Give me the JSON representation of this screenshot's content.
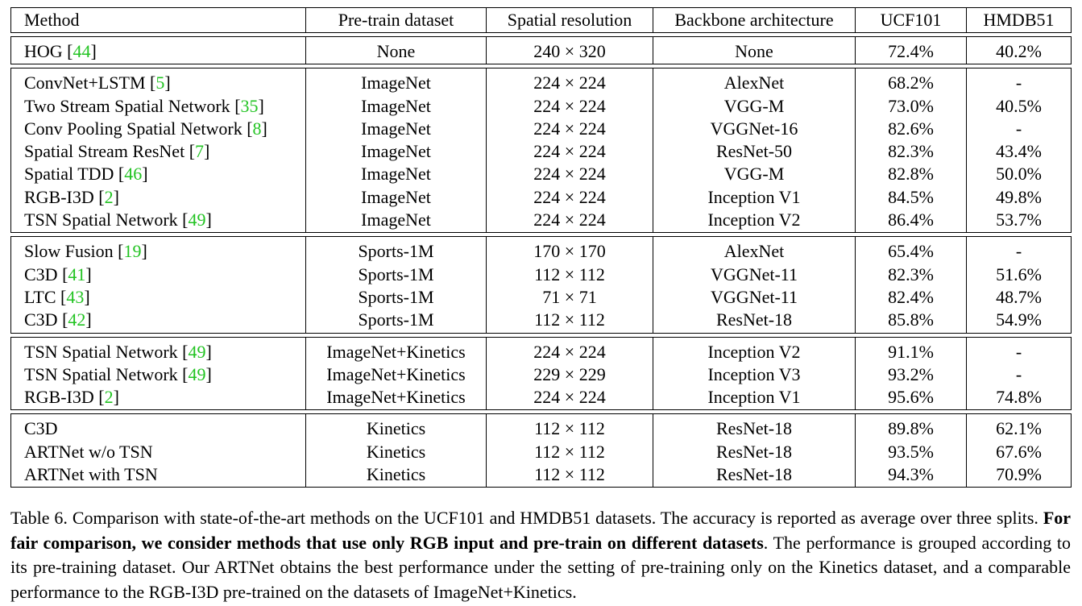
{
  "table": {
    "headers": [
      "Method",
      "Pre-train dataset",
      "Spatial resolution",
      "Backbone architecture",
      "UCF101",
      "HMDB51"
    ],
    "groups": [
      [
        {
          "method": "HOG",
          "ref": "44",
          "pretrain": "None",
          "resolution": "240 × 320",
          "backbone": "None",
          "ucf": "72.4%",
          "hmdb": "40.2%",
          "bold_ucf": false,
          "bold_hmdb": false
        }
      ],
      [
        {
          "method": "ConvNet+LSTM",
          "ref": "5",
          "pretrain": "ImageNet",
          "resolution": "224 × 224",
          "backbone": "AlexNet",
          "ucf": "68.2%",
          "hmdb": "-",
          "bold_ucf": false,
          "bold_hmdb": false
        },
        {
          "method": "Two Stream Spatial Network",
          "ref": "35",
          "pretrain": "ImageNet",
          "resolution": "224 × 224",
          "backbone": "VGG-M",
          "ucf": "73.0%",
          "hmdb": "40.5%",
          "bold_ucf": false,
          "bold_hmdb": false
        },
        {
          "method": "Conv Pooling Spatial Network",
          "ref": "8",
          "pretrain": "ImageNet",
          "resolution": "224 × 224",
          "backbone": "VGGNet-16",
          "ucf": "82.6%",
          "hmdb": "-",
          "bold_ucf": false,
          "bold_hmdb": false
        },
        {
          "method": "Spatial Stream ResNet",
          "ref": "7",
          "pretrain": "ImageNet",
          "resolution": "224 × 224",
          "backbone": "ResNet-50",
          "ucf": "82.3%",
          "hmdb": "43.4%",
          "bold_ucf": false,
          "bold_hmdb": false
        },
        {
          "method": "Spatial TDD",
          "ref": "46",
          "pretrain": "ImageNet",
          "resolution": "224 × 224",
          "backbone": "VGG-M",
          "ucf": "82.8%",
          "hmdb": "50.0%",
          "bold_ucf": false,
          "bold_hmdb": false
        },
        {
          "method": "RGB-I3D",
          "ref": "2",
          "pretrain": "ImageNet",
          "resolution": "224 × 224",
          "backbone": "Inception V1",
          "ucf": "84.5%",
          "hmdb": "49.8%",
          "bold_ucf": false,
          "bold_hmdb": false
        },
        {
          "method": "TSN Spatial Network",
          "ref": "49",
          "pretrain": "ImageNet",
          "resolution": "224 × 224",
          "backbone": "Inception V2",
          "ucf": "86.4%",
          "hmdb": "53.7%",
          "bold_ucf": true,
          "bold_hmdb": true
        }
      ],
      [
        {
          "method": "Slow Fusion",
          "ref": "19",
          "pretrain": "Sports-1M",
          "resolution": "170 × 170",
          "backbone": "AlexNet",
          "ucf": "65.4%",
          "hmdb": "-",
          "bold_ucf": false,
          "bold_hmdb": false
        },
        {
          "method": "C3D",
          "ref": "41",
          "pretrain": "Sports-1M",
          "resolution": "112 × 112",
          "backbone": "VGGNet-11",
          "ucf": "82.3%",
          "hmdb": "51.6%",
          "bold_ucf": false,
          "bold_hmdb": false
        },
        {
          "method": "LTC",
          "ref": "43",
          "pretrain": "Sports-1M",
          "resolution": "71 × 71",
          "backbone": "VGGNet-11",
          "ucf": "82.4%",
          "hmdb": "48.7%",
          "bold_ucf": false,
          "bold_hmdb": false
        },
        {
          "method": "C3D",
          "ref": "42",
          "pretrain": "Sports-1M",
          "resolution": "112 × 112",
          "backbone": "ResNet-18",
          "ucf": "85.8%",
          "hmdb": "54.9%",
          "bold_ucf": true,
          "bold_hmdb": true
        }
      ],
      [
        {
          "method": "TSN Spatial Network",
          "ref": "49",
          "pretrain": "ImageNet+Kinetics",
          "resolution": "224 × 224",
          "backbone": "Inception V2",
          "ucf": "91.1%",
          "hmdb": "-",
          "bold_ucf": false,
          "bold_hmdb": false
        },
        {
          "method": "TSN Spatial Network",
          "ref": "49",
          "pretrain": "ImageNet+Kinetics",
          "resolution": "229 × 229",
          "backbone": "Inception V3",
          "ucf": "93.2%",
          "hmdb": "-",
          "bold_ucf": false,
          "bold_hmdb": false
        },
        {
          "method": "RGB-I3D",
          "ref": "2",
          "pretrain": "ImageNet+Kinetics",
          "resolution": "224 × 224",
          "backbone": "Inception V1",
          "ucf": "95.6%",
          "hmdb": "74.8%",
          "bold_ucf": true,
          "bold_hmdb": true
        }
      ],
      [
        {
          "method": "C3D",
          "ref": "",
          "pretrain": "Kinetics",
          "resolution": "112 × 112",
          "backbone": "ResNet-18",
          "ucf": "89.8%",
          "hmdb": "62.1%",
          "bold_ucf": false,
          "bold_hmdb": false
        },
        {
          "method": "ARTNet w/o TSN",
          "ref": "",
          "pretrain": "Kinetics",
          "resolution": "112 × 112",
          "backbone": "ResNet-18",
          "ucf": "93.5%",
          "hmdb": "67.6%",
          "bold_ucf": false,
          "bold_hmdb": false
        },
        {
          "method": "ARTNet with TSN",
          "ref": "",
          "pretrain": "Kinetics",
          "resolution": "112 × 112",
          "backbone": "ResNet-18",
          "ucf": "94.3%",
          "hmdb": "70.9%",
          "bold_ucf": true,
          "bold_hmdb": true
        }
      ]
    ]
  },
  "caption": {
    "label": "Table 6.",
    "part1": "Comparison with state-of-the-art methods on the UCF101 and HMDB51 datasets. The accuracy is reported as average over three splits.",
    "bold": "For fair comparison, we consider methods that use only RGB input and pre-train on different datasets",
    "part2": ". The performance is grouped according to its pre-training dataset. Our ARTNet obtains the best performance under the setting of pre-training only on the Kinetics dataset, and a comparable performance to the RGB-I3D pre-trained on the datasets of ImageNet+Kinetics."
  }
}
